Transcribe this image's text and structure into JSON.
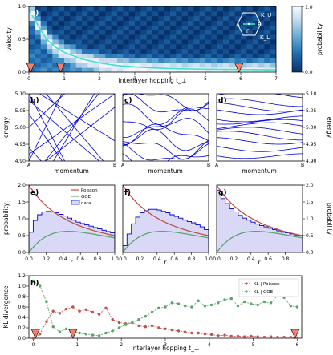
{
  "chart_data": [
    {
      "panel": "a)",
      "type": "heatmap",
      "xlabel": "interlayer hopping t_⊥",
      "ylabel": "velocity",
      "xlim": [
        0,
        7
      ],
      "ylim": [
        0,
        1
      ],
      "xticks": [
        "0",
        "1",
        "2",
        "3",
        "4",
        "5",
        "6",
        "7"
      ],
      "yticks": [
        "0.0",
        "0.5",
        "1.0"
      ],
      "colorbar": {
        "label": "probability",
        "ticks": [
          "0.0",
          "1.0"
        ],
        "colors": [
          "#08306b",
          "#2171b5",
          "#6baed6",
          "#c6dbef",
          "#f7fbff"
        ]
      },
      "curve": {
        "x": [
          0,
          0.25,
          0.5,
          0.75,
          1,
          1.5,
          2,
          2.5,
          3,
          3.5,
          4,
          5,
          6,
          7
        ],
        "y": [
          0.95,
          0.72,
          0.5,
          0.38,
          0.3,
          0.2,
          0.14,
          0.1,
          0.08,
          0.065,
          0.055,
          0.045,
          0.04,
          0.035
        ]
      },
      "markers_t": [
        0.05,
        0.9,
        5.95
      ],
      "inset": {
        "labels": [
          "K_U",
          "A",
          "B",
          "K_L",
          "Γ"
        ]
      }
    },
    {
      "panel": "b)",
      "type": "line",
      "xlabel": "momentum",
      "ylabel": "energy",
      "ylim": [
        4.9,
        5.1
      ],
      "yticks": [
        "4.90",
        "4.95",
        "5.00",
        "5.05",
        "5.10"
      ],
      "xticks": [
        "A",
        "B"
      ]
    },
    {
      "panel": "c)",
      "type": "line",
      "xlabel": "momentum",
      "ylim": [
        4.9,
        5.1
      ],
      "xticks": [
        "A",
        "B"
      ]
    },
    {
      "panel": "d)",
      "type": "line",
      "xlabel": "momentum",
      "ylabel": "energy",
      "ylim": [
        4.9,
        5.1
      ],
      "yticks": [
        "4.90",
        "4.95",
        "5.00",
        "5.05",
        "5.10"
      ],
      "xticks": [
        "A",
        "B"
      ]
    },
    {
      "panel": "e)",
      "type": "line",
      "xlabel": "r",
      "ylabel": "probability",
      "xlim": [
        0,
        1
      ],
      "ylim": [
        0,
        2
      ],
      "xticks": [
        "0.0",
        "0.2",
        "0.4",
        "0.6",
        "0.8",
        "1.0"
      ],
      "yticks": [
        "0.0",
        "0.5",
        "1.0",
        "1.5",
        "2.0"
      ],
      "legend": [
        "Poisson",
        "GOE",
        "data"
      ],
      "series": [
        {
          "name": "data",
          "values": [
            0.6,
            0.95,
            1.12,
            1.2,
            1.22,
            1.2,
            1.18,
            1.13,
            1.08,
            1.02,
            0.96,
            0.9,
            0.86,
            0.82,
            0.78,
            0.74,
            0.7,
            0.66,
            0.62,
            0.58
          ]
        }
      ]
    },
    {
      "panel": "f)",
      "type": "line",
      "xlabel": "r",
      "xlim": [
        0,
        1
      ],
      "ylim": [
        0,
        2
      ],
      "xticks": [
        "0.0",
        "0.2",
        "0.4",
        "0.6",
        "0.8",
        "1.0"
      ],
      "series": [
        {
          "name": "data",
          "values": [
            0.2,
            0.55,
            0.85,
            1.05,
            1.18,
            1.24,
            1.28,
            1.28,
            1.26,
            1.22,
            1.18,
            1.12,
            1.07,
            1.02,
            0.96,
            0.92,
            0.88,
            0.82,
            0.76,
            0.68
          ]
        }
      ]
    },
    {
      "panel": "g)",
      "type": "line",
      "xlabel": "r",
      "ylabel": "probability",
      "xlim": [
        0,
        1
      ],
      "ylim": [
        0,
        2
      ],
      "xticks": [
        "0.0",
        "0.2",
        "0.4",
        "0.6",
        "0.8"
      ],
      "yticks": [
        "0.0",
        "0.5",
        "1.0",
        "1.5",
        "2.0"
      ],
      "series": [
        {
          "name": "data",
          "values": [
            1.85,
            1.6,
            1.45,
            1.3,
            1.2,
            1.1,
            1.02,
            0.96,
            0.9,
            0.84,
            0.8,
            0.76,
            0.72,
            0.68,
            0.64,
            0.6,
            0.58,
            0.55,
            0.52,
            0.5
          ]
        }
      ]
    },
    {
      "panel": "h)",
      "type": "line",
      "xlabel": "interlayer hopping t_⊥",
      "ylabel": "KL divergence",
      "xlim": [
        -0.1,
        6.1
      ],
      "ylim": [
        0,
        1.2
      ],
      "xticks": [
        "0",
        "1",
        "2",
        "3",
        "4",
        "5",
        "6"
      ],
      "yticks": [
        "0.0",
        "0.2",
        "0.4",
        "0.6",
        "0.8",
        "1.0",
        "1.2"
      ],
      "legend": [
        "KL | Poisson",
        "KL | GOE"
      ],
      "x": [
        0.0,
        0.15,
        0.3,
        0.45,
        0.6,
        0.75,
        0.9,
        1.05,
        1.2,
        1.35,
        1.5,
        1.65,
        1.8,
        1.95,
        2.1,
        2.25,
        2.4,
        2.55,
        2.7,
        2.85,
        3.0,
        3.15,
        3.3,
        3.45,
        3.6,
        3.75,
        3.9,
        4.05,
        4.2,
        4.35,
        4.5,
        4.65,
        4.8,
        4.95,
        5.1,
        5.25,
        5.4,
        5.55,
        5.7,
        5.85,
        6.0
      ],
      "series": [
        {
          "name": "KL | Poisson",
          "values": [
            0.0,
            0.08,
            0.32,
            0.52,
            0.48,
            0.56,
            0.6,
            0.52,
            0.55,
            0.5,
            0.46,
            0.58,
            0.36,
            0.3,
            0.28,
            0.3,
            0.24,
            0.22,
            0.24,
            0.2,
            0.18,
            0.16,
            0.14,
            0.12,
            0.1,
            0.1,
            0.08,
            0.07,
            0.05,
            0.06,
            0.04,
            0.04,
            0.03,
            0.04,
            0.03,
            0.02,
            0.03,
            0.02,
            0.02,
            0.02,
            0.01
          ]
        },
        {
          "name": "KL | GOE",
          "values": [
            1.1,
            1.0,
            0.7,
            0.22,
            0.12,
            0.18,
            0.14,
            0.1,
            0.08,
            0.06,
            0.05,
            0.1,
            0.14,
            0.2,
            0.26,
            0.3,
            0.36,
            0.42,
            0.5,
            0.58,
            0.6,
            0.68,
            0.66,
            0.62,
            0.6,
            0.72,
            0.62,
            0.64,
            0.68,
            0.74,
            0.76,
            0.62,
            0.7,
            0.66,
            0.64,
            0.7,
            0.68,
            0.82,
            0.78,
            0.62,
            0.6
          ]
        }
      ],
      "markers_t": [
        0.05,
        0.9,
        5.95
      ]
    }
  ]
}
